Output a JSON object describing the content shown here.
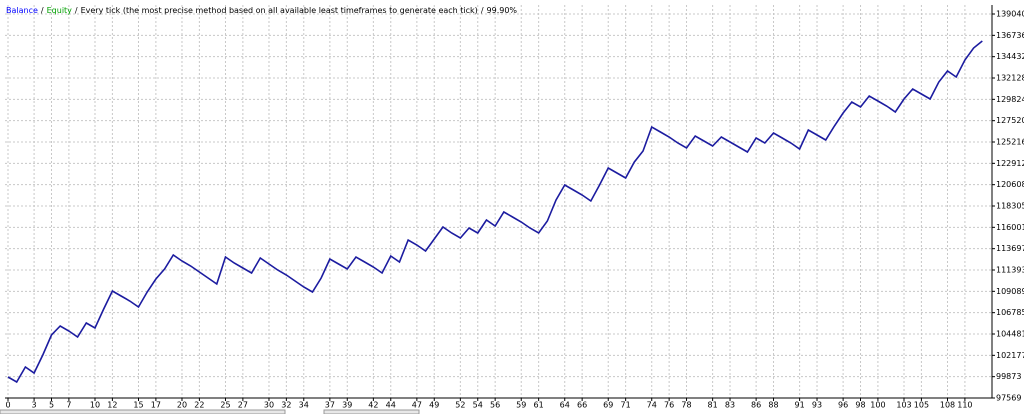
{
  "chart_data": {
    "type": "line",
    "legend": [
      {
        "name": "Balance",
        "color": "#0000ff"
      },
      {
        "name": "Equity",
        "color": "#00a000"
      }
    ],
    "separator": "/",
    "subtitle": "Every tick (the most precise method based on all available least timeframes to generate each tick)",
    "quality": "99.90%",
    "x": [
      0,
      1,
      2,
      3,
      4,
      5,
      6,
      7,
      8,
      9,
      10,
      11,
      12,
      13,
      14,
      15,
      16,
      17,
      18,
      19,
      20,
      21,
      22,
      23,
      24,
      25,
      26,
      27,
      28,
      29,
      30,
      31,
      32,
      33,
      34,
      35,
      36,
      37,
      38,
      39,
      40,
      41,
      42,
      43,
      44,
      45,
      46,
      47,
      48,
      49,
      50,
      51,
      52,
      53,
      54,
      55,
      56,
      57,
      58,
      59,
      60,
      61,
      62,
      63,
      64,
      65,
      66,
      67,
      68,
      69,
      70,
      71,
      72,
      73,
      74,
      75,
      76,
      77,
      78,
      79,
      80,
      81,
      82,
      83,
      84,
      85,
      86,
      87,
      88,
      89,
      90,
      91,
      92,
      93,
      94,
      95,
      96,
      97,
      98,
      99,
      100,
      101,
      102,
      103,
      104,
      105,
      106,
      107,
      108,
      109,
      110,
      111,
      112
    ],
    "series": [
      {
        "name": "Balance",
        "color": "#1c1ca0",
        "values": [
          99837,
          99297,
          100917,
          100269,
          102213,
          104373,
          105345,
          104805,
          104157,
          105669,
          105129,
          107181,
          109125,
          108585,
          108045,
          107397,
          109017,
          110421,
          111501,
          113013,
          112365,
          111825,
          111177,
          110529,
          109881,
          112797,
          112149,
          111609,
          111069,
          112689,
          112041,
          111393,
          110853,
          110205,
          109557,
          109017,
          110529,
          112581,
          112041,
          111501,
          112797,
          112257,
          111717,
          111069,
          112905,
          112257,
          114633,
          114093,
          113445,
          114741,
          116037,
          115389,
          114849,
          115929,
          115389,
          116793,
          116145,
          117657,
          117117,
          116577,
          115929,
          115389,
          116685,
          118953,
          120573,
          120033,
          119493,
          118845,
          120573,
          122409,
          121869,
          121329,
          123057,
          124245,
          126837,
          126297,
          125757,
          125109,
          124569,
          125865,
          125325,
          124785,
          125757,
          125217,
          124677,
          124137,
          125649,
          125109,
          126189,
          125649,
          125109,
          124461,
          126513,
          125973,
          125433,
          126945,
          128349,
          129537,
          128997,
          130185,
          129645,
          129105,
          128457,
          129861,
          130941,
          130401,
          129861,
          131697,
          132885,
          132237,
          134073,
          135369,
          136125
        ]
      }
    ],
    "xlim": [
      0,
      113
    ],
    "xticks": [
      0,
      3,
      5,
      7,
      10,
      12,
      15,
      17,
      20,
      22,
      25,
      27,
      30,
      32,
      34,
      37,
      39,
      42,
      44,
      47,
      49,
      52,
      54,
      56,
      59,
      61,
      64,
      66,
      69,
      71,
      74,
      76,
      78,
      81,
      83,
      86,
      88,
      91,
      93,
      96,
      98,
      100,
      103,
      105,
      108,
      110
    ],
    "ylim": [
      97569,
      140013
    ],
    "yticks": [
      97569,
      99873,
      102177,
      104481,
      106785,
      109089,
      111393,
      113697,
      116001,
      118305,
      120608,
      122912,
      125216,
      127520,
      129824,
      132128,
      134432,
      136736,
      139040
    ],
    "grid": true
  }
}
